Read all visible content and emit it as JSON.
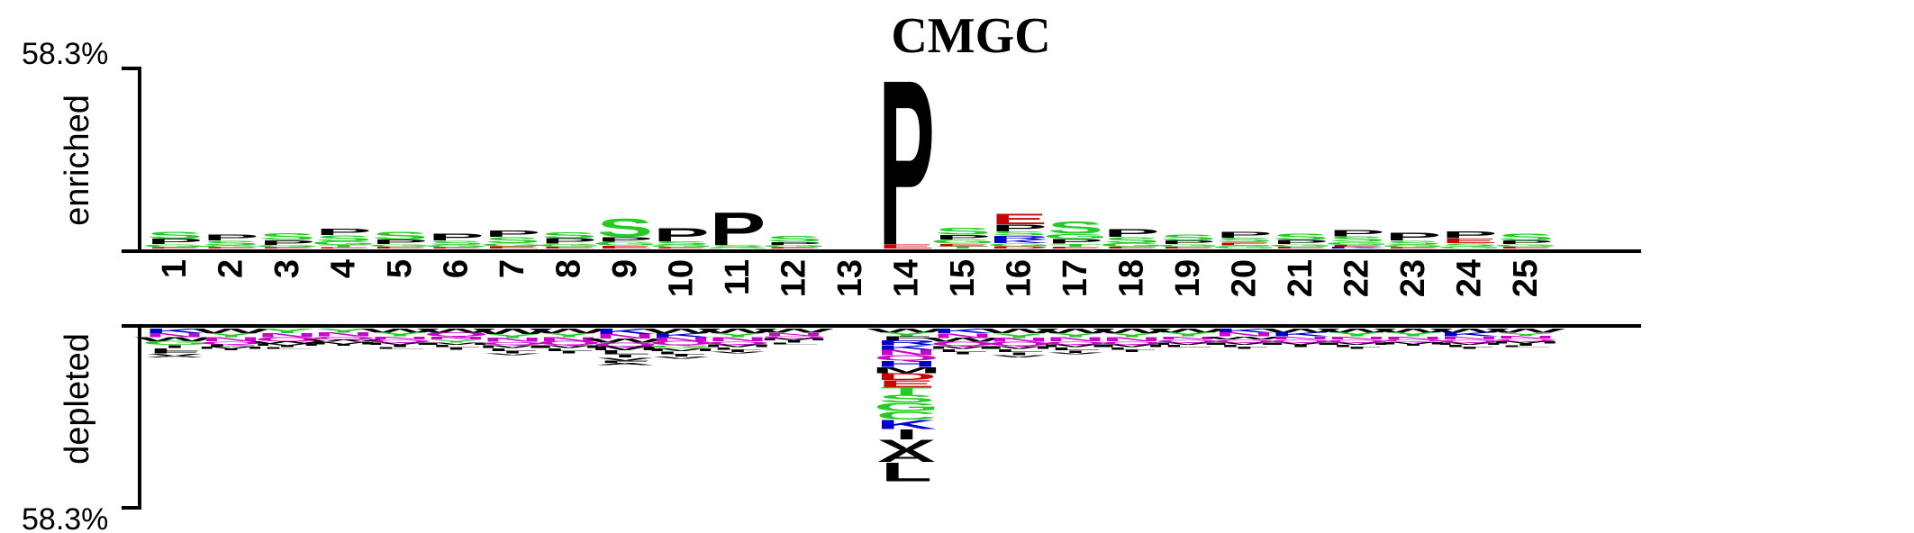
{
  "chart_data": {
    "type": "sequence-logo",
    "title": "CMGC",
    "top_percent": "58.3%",
    "bottom_percent": "58.3%",
    "ylabel_top": "enriched",
    "ylabel_bottom": "depleted",
    "positions": [
      "1",
      "2",
      "3",
      "4",
      "5",
      "6",
      "7",
      "8",
      "9",
      "10",
      "11",
      "12",
      "13",
      "14",
      "15",
      "16",
      "17",
      "18",
      "19",
      "20",
      "21",
      "22",
      "23",
      "24",
      "25"
    ],
    "ylim_enriched": [
      0,
      58.3
    ],
    "ylim_depleted": [
      0,
      58.3
    ],
    "residue_colors": {
      "S": "#22cc22",
      "T": "#22cc22",
      "G": "#22cc22",
      "Y": "#22cc22",
      "C": "#22cc22",
      "P": "#000000",
      "A": "#000000",
      "V": "#000000",
      "L": "#000000",
      "I": "#000000",
      "M": "#000000",
      "F": "#000000",
      "W": "#000000",
      "E": "#cc0000",
      "D": "#cc0000",
      "K": "#0000cc",
      "R": "#0000cc",
      "H": "#0000cc",
      "N": "#cc00cc",
      "Q": "#cc00cc"
    },
    "enriched": [
      [
        {
          "aa": "S",
          "v": 2.4
        },
        {
          "aa": "P",
          "v": 1.8
        },
        {
          "aa": "G",
          "v": 1.0
        },
        {
          "aa": "E",
          "v": 0.4
        }
      ],
      [
        {
          "aa": "P",
          "v": 2.0
        },
        {
          "aa": "S",
          "v": 1.6
        },
        {
          "aa": "G",
          "v": 0.6
        },
        {
          "aa": "E",
          "v": 0.4
        }
      ],
      [
        {
          "aa": "S",
          "v": 2.4
        },
        {
          "aa": "P",
          "v": 1.6
        },
        {
          "aa": "G",
          "v": 0.8
        },
        {
          "aa": "E",
          "v": 0.4
        }
      ],
      [
        {
          "aa": "P",
          "v": 2.2
        },
        {
          "aa": "S",
          "v": 2.0
        },
        {
          "aa": "G",
          "v": 1.2
        },
        {
          "aa": "T",
          "v": 0.8
        },
        {
          "aa": "E",
          "v": 0.4
        }
      ],
      [
        {
          "aa": "S",
          "v": 2.6
        },
        {
          "aa": "P",
          "v": 1.6
        },
        {
          "aa": "G",
          "v": 0.8
        },
        {
          "aa": "E",
          "v": 0.6
        }
      ],
      [
        {
          "aa": "P",
          "v": 2.4
        },
        {
          "aa": "S",
          "v": 1.4
        },
        {
          "aa": "G",
          "v": 0.8
        },
        {
          "aa": "E",
          "v": 0.4
        }
      ],
      [
        {
          "aa": "P",
          "v": 2.2
        },
        {
          "aa": "S",
          "v": 2.0
        },
        {
          "aa": "G",
          "v": 1.0
        },
        {
          "aa": "E",
          "v": 0.8
        }
      ],
      [
        {
          "aa": "S",
          "v": 2.0
        },
        {
          "aa": "P",
          "v": 1.8
        },
        {
          "aa": "G",
          "v": 1.0
        },
        {
          "aa": "E",
          "v": 0.6
        }
      ],
      [
        {
          "aa": "S",
          "v": 6.0
        },
        {
          "aa": "P",
          "v": 1.6
        },
        {
          "aa": "G",
          "v": 1.2
        },
        {
          "aa": "E",
          "v": 1.0
        }
      ],
      [
        {
          "aa": "P",
          "v": 4.6
        },
        {
          "aa": "S",
          "v": 1.2
        },
        {
          "aa": "G",
          "v": 0.8
        },
        {
          "aa": "E",
          "v": 0.4
        }
      ],
      [
        {
          "aa": "P",
          "v": 11.0
        },
        {
          "aa": "S",
          "v": 0.8
        },
        {
          "aa": "G",
          "v": 0.4
        }
      ],
      [
        {
          "aa": "S",
          "v": 2.0
        },
        {
          "aa": "P",
          "v": 1.0
        },
        {
          "aa": "G",
          "v": 0.8
        },
        {
          "aa": "E",
          "v": 0.4
        }
      ],
      [],
      [
        {
          "aa": "P",
          "v": 55.6
        },
        {
          "aa": "E",
          "v": 1.4
        }
      ],
      [
        {
          "aa": "S",
          "v": 2.4
        },
        {
          "aa": "P",
          "v": 1.6
        },
        {
          "aa": "G",
          "v": 1.4
        },
        {
          "aa": "T",
          "v": 0.8
        },
        {
          "aa": "E",
          "v": 0.8
        }
      ],
      [
        {
          "aa": "E",
          "v": 3.6
        },
        {
          "aa": "P",
          "v": 2.4
        },
        {
          "aa": "K",
          "v": 1.2
        },
        {
          "aa": "R",
          "v": 1.2
        },
        {
          "aa": "S",
          "v": 1.4
        },
        {
          "aa": "G",
          "v": 1.0
        },
        {
          "aa": "D",
          "v": 0.8
        }
      ],
      [
        {
          "aa": "S",
          "v": 4.2
        },
        {
          "aa": "P",
          "v": 1.6
        },
        {
          "aa": "G",
          "v": 1.6
        },
        {
          "aa": "T",
          "v": 1.0
        },
        {
          "aa": "E",
          "v": 0.6
        }
      ],
      [
        {
          "aa": "P",
          "v": 2.6
        },
        {
          "aa": "S",
          "v": 2.0
        },
        {
          "aa": "G",
          "v": 1.2
        },
        {
          "aa": "E",
          "v": 0.6
        }
      ],
      [
        {
          "aa": "S",
          "v": 2.0
        },
        {
          "aa": "P",
          "v": 1.2
        },
        {
          "aa": "G",
          "v": 0.8
        },
        {
          "aa": "E",
          "v": 0.6
        }
      ],
      [
        {
          "aa": "P",
          "v": 2.0
        },
        {
          "aa": "S",
          "v": 1.6
        },
        {
          "aa": "G",
          "v": 1.0
        },
        {
          "aa": "E",
          "v": 1.0
        }
      ],
      [
        {
          "aa": "S",
          "v": 2.2
        },
        {
          "aa": "P",
          "v": 1.4
        },
        {
          "aa": "G",
          "v": 0.8
        },
        {
          "aa": "E",
          "v": 0.6
        }
      ],
      [
        {
          "aa": "P",
          "v": 2.2
        },
        {
          "aa": "S",
          "v": 1.8
        },
        {
          "aa": "G",
          "v": 1.0
        },
        {
          "aa": "K",
          "v": 0.6
        },
        {
          "aa": "E",
          "v": 0.6
        }
      ],
      [
        {
          "aa": "P",
          "v": 2.6
        },
        {
          "aa": "S",
          "v": 1.4
        },
        {
          "aa": "G",
          "v": 0.8
        },
        {
          "aa": "E",
          "v": 0.4
        }
      ],
      [
        {
          "aa": "P",
          "v": 2.4
        },
        {
          "aa": "S",
          "v": 1.0
        },
        {
          "aa": "G",
          "v": 0.8
        },
        {
          "aa": "E",
          "v": 1.6
        }
      ],
      [
        {
          "aa": "S",
          "v": 2.4
        },
        {
          "aa": "P",
          "v": 1.2
        },
        {
          "aa": "G",
          "v": 0.8
        },
        {
          "aa": "E",
          "v": 0.6
        }
      ]
    ],
    "depleted": [
      [
        {
          "aa": "K",
          "v": 1.2
        },
        {
          "aa": "N",
          "v": 1.0
        },
        {
          "aa": "W",
          "v": 1.0
        },
        {
          "aa": "G",
          "v": 1.0
        },
        {
          "aa": "I",
          "v": 0.8
        },
        {
          "aa": "L",
          "v": 0.8
        },
        {
          "aa": "F",
          "v": 0.6
        },
        {
          "aa": "V",
          "v": 0.6
        },
        {
          "aa": "A",
          "v": 0.4
        }
      ],
      [
        {
          "aa": "W",
          "v": 1.2
        },
        {
          "aa": "Y",
          "v": 1.0
        },
        {
          "aa": "N",
          "v": 1.0
        },
        {
          "aa": "Q",
          "v": 0.8
        },
        {
          "aa": "L",
          "v": 0.6
        },
        {
          "aa": "M",
          "v": 0.6
        },
        {
          "aa": "I",
          "v": 0.4
        }
      ],
      [
        {
          "aa": "Y",
          "v": 1.2
        },
        {
          "aa": "N",
          "v": 1.0
        },
        {
          "aa": "Q",
          "v": 1.0
        },
        {
          "aa": "W",
          "v": 0.6
        },
        {
          "aa": "M",
          "v": 0.6
        },
        {
          "aa": "I",
          "v": 0.4
        },
        {
          "aa": "L",
          "v": 0.4
        }
      ],
      [
        {
          "aa": "Y",
          "v": 1.0
        },
        {
          "aa": "N",
          "v": 1.0
        },
        {
          "aa": "Q",
          "v": 0.8
        },
        {
          "aa": "W",
          "v": 0.6
        },
        {
          "aa": "M",
          "v": 0.6
        },
        {
          "aa": "I",
          "v": 0.4
        }
      ],
      [
        {
          "aa": "W",
          "v": 1.0
        },
        {
          "aa": "Y",
          "v": 1.0
        },
        {
          "aa": "N",
          "v": 0.8
        },
        {
          "aa": "Q",
          "v": 0.8
        },
        {
          "aa": "M",
          "v": 0.6
        },
        {
          "aa": "I",
          "v": 0.6
        },
        {
          "aa": "L",
          "v": 0.4
        }
      ],
      [
        {
          "aa": "W",
          "v": 1.0
        },
        {
          "aa": "Q",
          "v": 1.0
        },
        {
          "aa": "N",
          "v": 0.8
        },
        {
          "aa": "Y",
          "v": 0.8
        },
        {
          "aa": "M",
          "v": 0.6
        },
        {
          "aa": "L",
          "v": 0.6
        },
        {
          "aa": "I",
          "v": 0.6
        }
      ],
      [
        {
          "aa": "W",
          "v": 1.4
        },
        {
          "aa": "Y",
          "v": 1.0
        },
        {
          "aa": "N",
          "v": 1.0
        },
        {
          "aa": "Q",
          "v": 0.8
        },
        {
          "aa": "M",
          "v": 0.8
        },
        {
          "aa": "L",
          "v": 0.8
        },
        {
          "aa": "I",
          "v": 0.6
        },
        {
          "aa": "V",
          "v": 0.4
        }
      ],
      [
        {
          "aa": "W",
          "v": 1.2
        },
        {
          "aa": "Y",
          "v": 1.0
        },
        {
          "aa": "N",
          "v": 1.0
        },
        {
          "aa": "Q",
          "v": 1.0
        },
        {
          "aa": "M",
          "v": 0.8
        },
        {
          "aa": "L",
          "v": 0.8
        },
        {
          "aa": "I",
          "v": 0.6
        }
      ],
      [
        {
          "aa": "K",
          "v": 1.4
        },
        {
          "aa": "N",
          "v": 1.2
        },
        {
          "aa": "W",
          "v": 1.0
        },
        {
          "aa": "Q",
          "v": 1.0
        },
        {
          "aa": "M",
          "v": 1.0
        },
        {
          "aa": "L",
          "v": 1.0
        },
        {
          "aa": "I",
          "v": 0.8
        },
        {
          "aa": "V",
          "v": 0.8
        },
        {
          "aa": "F",
          "v": 0.6
        },
        {
          "aa": "A",
          "v": 0.6
        }
      ],
      [
        {
          "aa": "W",
          "v": 1.2
        },
        {
          "aa": "K",
          "v": 1.0
        },
        {
          "aa": "N",
          "v": 1.0
        },
        {
          "aa": "Q",
          "v": 1.0
        },
        {
          "aa": "G",
          "v": 0.8
        },
        {
          "aa": "M",
          "v": 0.8
        },
        {
          "aa": "L",
          "v": 0.8
        },
        {
          "aa": "I",
          "v": 0.6
        },
        {
          "aa": "V",
          "v": 0.6
        }
      ],
      [
        {
          "aa": "W",
          "v": 1.2
        },
        {
          "aa": "Y",
          "v": 1.0
        },
        {
          "aa": "N",
          "v": 1.0
        },
        {
          "aa": "Q",
          "v": 0.8
        },
        {
          "aa": "M",
          "v": 0.8
        },
        {
          "aa": "L",
          "v": 0.6
        },
        {
          "aa": "I",
          "v": 0.6
        },
        {
          "aa": "V",
          "v": 0.4
        }
      ],
      [
        {
          "aa": "W",
          "v": 1.0
        },
        {
          "aa": "N",
          "v": 0.8
        },
        {
          "aa": "Q",
          "v": 0.6
        },
        {
          "aa": "M",
          "v": 0.6
        },
        {
          "aa": "I",
          "v": 0.6
        },
        {
          "aa": "L",
          "v": 0.4
        }
      ],
      [],
      [
        {
          "aa": "W",
          "v": 1.0
        },
        {
          "aa": "Y",
          "v": 1.0
        },
        {
          "aa": "F",
          "v": 1.0
        },
        {
          "aa": "R",
          "v": 1.2
        },
        {
          "aa": "K",
          "v": 1.2
        },
        {
          "aa": "N",
          "v": 1.4
        },
        {
          "aa": "Q",
          "v": 1.4
        },
        {
          "aa": "H",
          "v": 1.6
        },
        {
          "aa": "M",
          "v": 1.6
        },
        {
          "aa": "D",
          "v": 1.8
        },
        {
          "aa": "E",
          "v": 1.8
        },
        {
          "aa": "T",
          "v": 2.0
        },
        {
          "aa": "S",
          "v": 2.0
        },
        {
          "aa": "G",
          "v": 2.2
        },
        {
          "aa": "C",
          "v": 2.2
        },
        {
          "aa": "K",
          "v": 2.4
        },
        {
          "aa": "I",
          "v": 2.6
        },
        {
          "aa": "V",
          "v": 2.8
        },
        {
          "aa": "A",
          "v": 3.0
        },
        {
          "aa": "L",
          "v": 5.0
        }
      ],
      [
        {
          "aa": "K",
          "v": 1.2
        },
        {
          "aa": "N",
          "v": 1.2
        },
        {
          "aa": "W",
          "v": 1.0
        },
        {
          "aa": "Q",
          "v": 1.0
        },
        {
          "aa": "M",
          "v": 0.8
        },
        {
          "aa": "L",
          "v": 0.8
        },
        {
          "aa": "I",
          "v": 0.6
        }
      ],
      [
        {
          "aa": "W",
          "v": 1.2
        },
        {
          "aa": "Y",
          "v": 1.2
        },
        {
          "aa": "N",
          "v": 1.0
        },
        {
          "aa": "Q",
          "v": 1.0
        },
        {
          "aa": "M",
          "v": 0.8
        },
        {
          "aa": "L",
          "v": 0.8
        },
        {
          "aa": "I",
          "v": 0.8
        },
        {
          "aa": "V",
          "v": 0.6
        }
      ],
      [
        {
          "aa": "W",
          "v": 1.2
        },
        {
          "aa": "Y",
          "v": 1.0
        },
        {
          "aa": "N",
          "v": 1.0
        },
        {
          "aa": "Q",
          "v": 0.8
        },
        {
          "aa": "M",
          "v": 0.8
        },
        {
          "aa": "L",
          "v": 0.8
        },
        {
          "aa": "I",
          "v": 0.6
        },
        {
          "aa": "V",
          "v": 0.4
        }
      ],
      [
        {
          "aa": "W",
          "v": 1.2
        },
        {
          "aa": "Y",
          "v": 1.0
        },
        {
          "aa": "N",
          "v": 1.0
        },
        {
          "aa": "Q",
          "v": 0.8
        },
        {
          "aa": "M",
          "v": 0.8
        },
        {
          "aa": "L",
          "v": 0.6
        },
        {
          "aa": "I",
          "v": 0.6
        }
      ],
      [
        {
          "aa": "W",
          "v": 1.0
        },
        {
          "aa": "Y",
          "v": 1.0
        },
        {
          "aa": "N",
          "v": 0.8
        },
        {
          "aa": "Q",
          "v": 0.8
        },
        {
          "aa": "M",
          "v": 0.6
        },
        {
          "aa": "L",
          "v": 0.6
        }
      ],
      [
        {
          "aa": "K",
          "v": 1.0
        },
        {
          "aa": "N",
          "v": 1.0
        },
        {
          "aa": "W",
          "v": 0.8
        },
        {
          "aa": "Q",
          "v": 0.8
        },
        {
          "aa": "M",
          "v": 0.6
        },
        {
          "aa": "L",
          "v": 0.6
        },
        {
          "aa": "I",
          "v": 0.4
        }
      ],
      [
        {
          "aa": "W",
          "v": 1.0
        },
        {
          "aa": "K",
          "v": 1.0
        },
        {
          "aa": "N",
          "v": 0.8
        },
        {
          "aa": "Q",
          "v": 0.8
        },
        {
          "aa": "M",
          "v": 0.6
        },
        {
          "aa": "I",
          "v": 0.6
        }
      ],
      [
        {
          "aa": "W",
          "v": 1.0
        },
        {
          "aa": "Y",
          "v": 1.0
        },
        {
          "aa": "N",
          "v": 0.8
        },
        {
          "aa": "Q",
          "v": 0.8
        },
        {
          "aa": "M",
          "v": 0.6
        },
        {
          "aa": "L",
          "v": 0.6
        },
        {
          "aa": "I",
          "v": 0.4
        }
      ],
      [
        {
          "aa": "W",
          "v": 1.0
        },
        {
          "aa": "Y",
          "v": 1.0
        },
        {
          "aa": "N",
          "v": 0.8
        },
        {
          "aa": "Q",
          "v": 0.6
        },
        {
          "aa": "M",
          "v": 0.6
        },
        {
          "aa": "I",
          "v": 0.4
        }
      ],
      [
        {
          "aa": "W",
          "v": 1.0
        },
        {
          "aa": "K",
          "v": 1.0
        },
        {
          "aa": "N",
          "v": 0.8
        },
        {
          "aa": "Q",
          "v": 0.8
        },
        {
          "aa": "M",
          "v": 0.6
        },
        {
          "aa": "L",
          "v": 0.6
        },
        {
          "aa": "I",
          "v": 0.4
        }
      ],
      [
        {
          "aa": "W",
          "v": 1.0
        },
        {
          "aa": "Y",
          "v": 0.8
        },
        {
          "aa": "N",
          "v": 0.8
        },
        {
          "aa": "Q",
          "v": 0.6
        },
        {
          "aa": "M",
          "v": 0.6
        },
        {
          "aa": "I",
          "v": 0.6
        },
        {
          "aa": "L",
          "v": 0.4
        }
      ]
    ]
  }
}
